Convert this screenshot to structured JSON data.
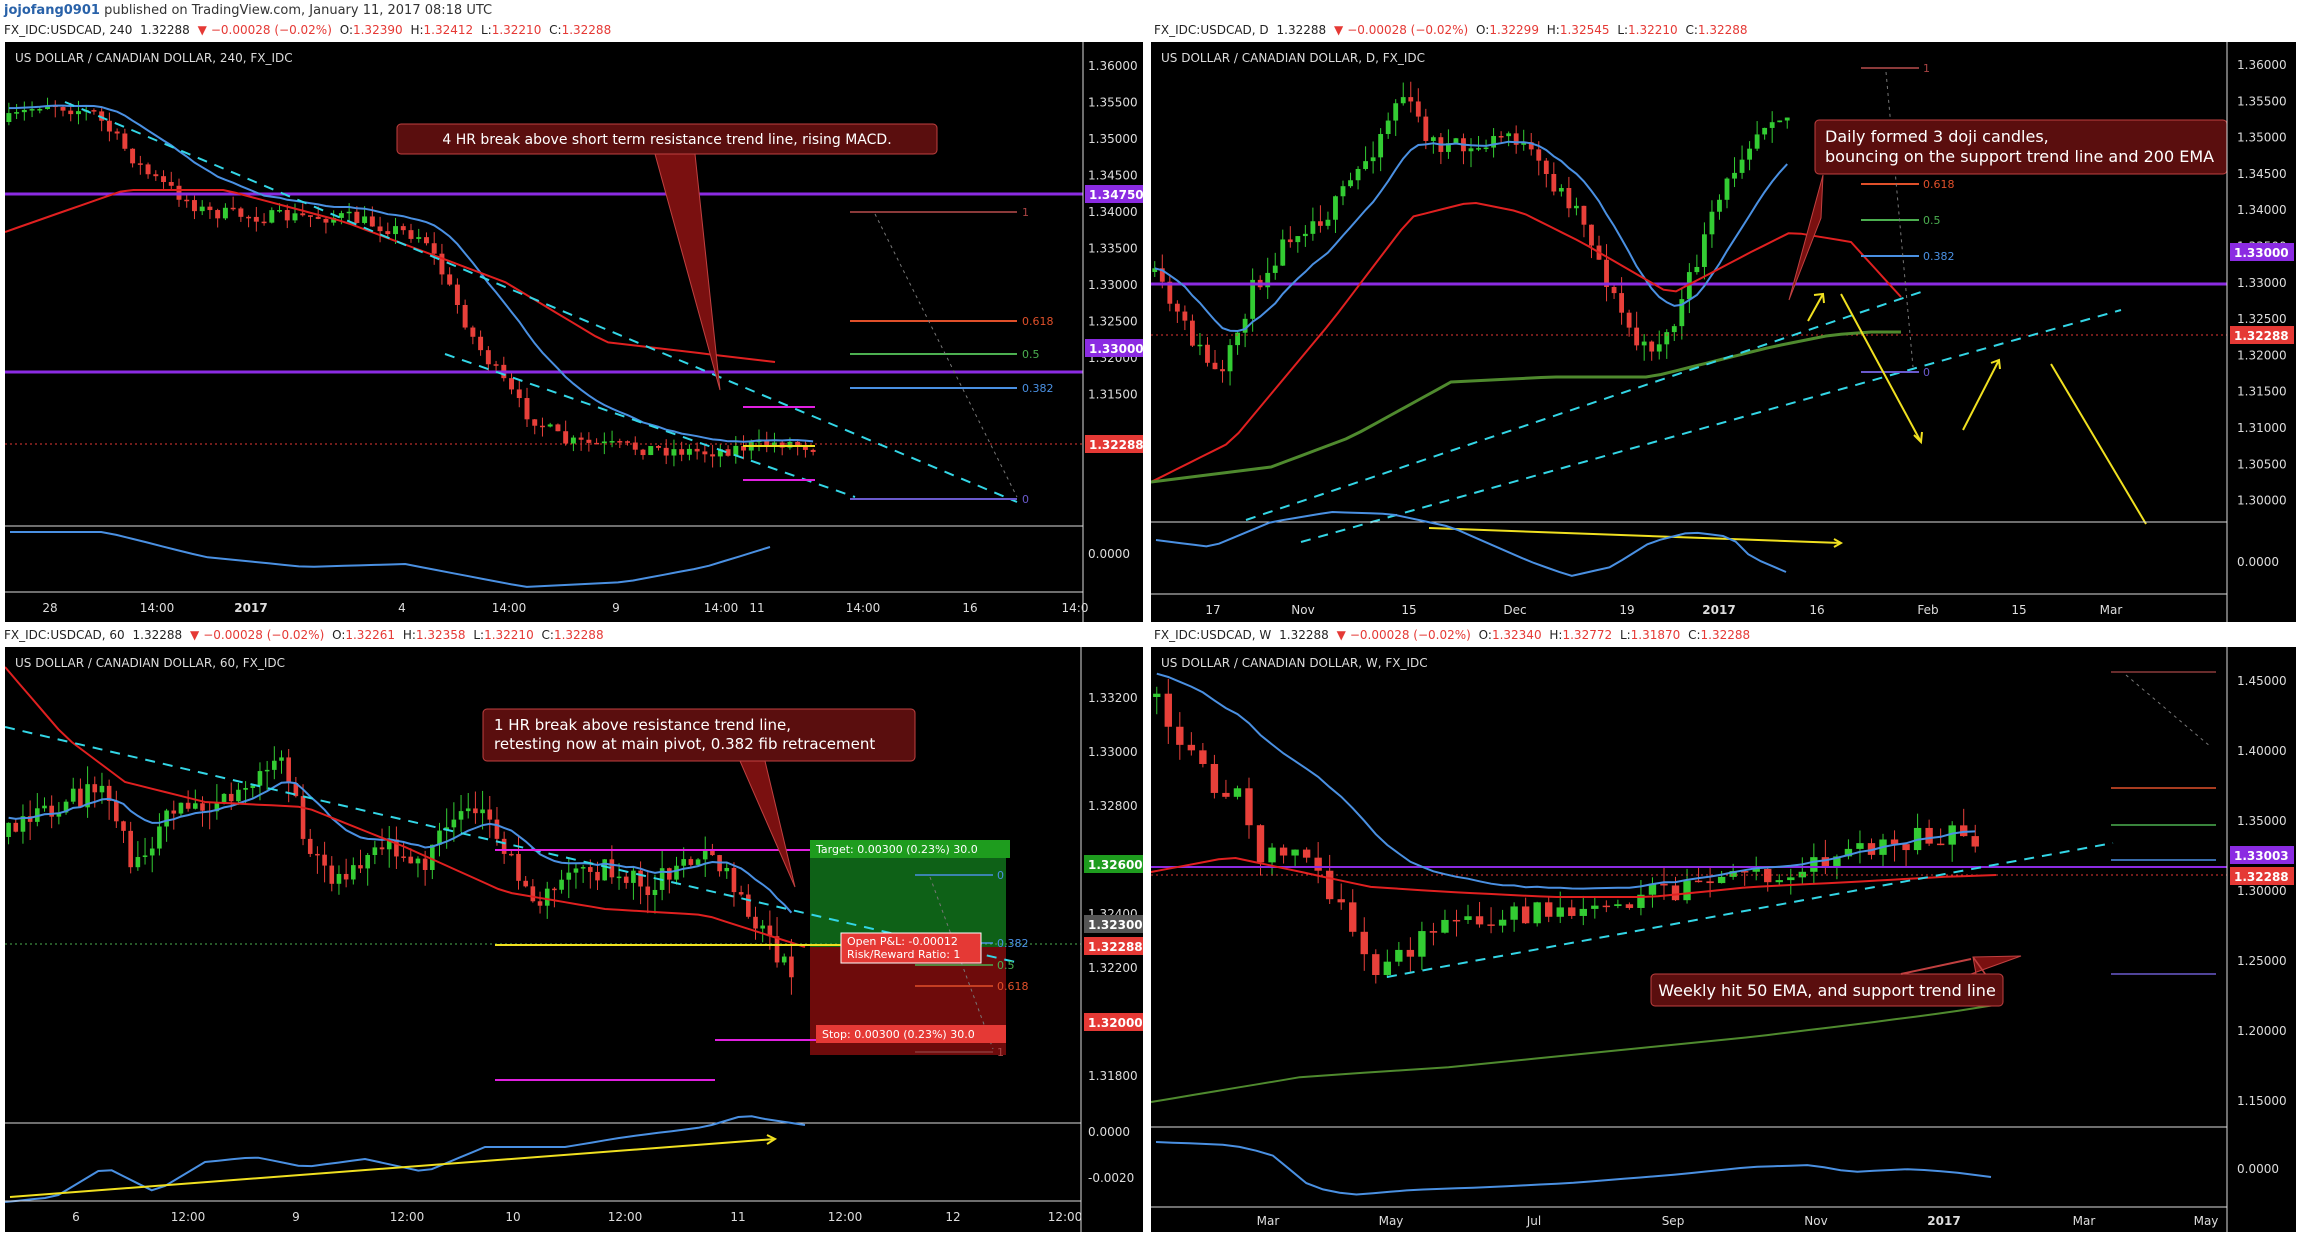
{
  "header": {
    "user": "jojofang0901",
    "text": "published on TradingView.com, January 11, 2017 08:18 UTC"
  },
  "colors": {
    "bg": "#000000",
    "up": "#33cc33",
    "down": "#e8403a",
    "ema_blue": "#4a90e2",
    "ema_red": "#e02020",
    "ema_green": "#4f8a2e",
    "pivot": "#8b2be2",
    "cyan": "#33d6e6",
    "yellow": "#f0e020",
    "magenta": "#e020e0"
  },
  "panels": [
    {
      "id": "p240",
      "info": {
        "sym": "FX_IDC:USDCAD, 240",
        "last": "1.32288",
        "chg": "−0.00028 (−0.02%)",
        "o": "1.32390",
        "h": "1.32412",
        "l": "1.32210",
        "c": "1.32288"
      },
      "title": "US DOLLAR / CANADIAN DOLLAR, 240, FX_IDC",
      "price_ticks": [
        "1.36000",
        "1.35500",
        "1.35000",
        "1.34500",
        "1.34000",
        "1.33500",
        "1.33000",
        "1.32500",
        "1.32000",
        "1.31500"
      ],
      "badges": [
        {
          "label": "1.34750",
          "color": "#8b2be2"
        },
        {
          "label": "1.33000",
          "color": "#8b2be2"
        },
        {
          "label": "1.32288",
          "color": "#e53935"
        }
      ],
      "macd_tick": "0.0000",
      "time_ticks": [
        "28",
        "14:00",
        "2017",
        "4",
        "14:00",
        "9",
        "14:00",
        "11",
        "14:00",
        "16",
        "14:0"
      ],
      "fib": [
        "1",
        "0.618",
        "0.5",
        "0.382",
        "0"
      ],
      "annotation": "4 HR break above short term resistance trend line, rising MACD."
    },
    {
      "id": "pD",
      "info": {
        "sym": "FX_IDC:USDCAD, D",
        "last": "1.32288",
        "chg": "−0.00028 (−0.02%)",
        "o": "1.32299",
        "h": "1.32545",
        "l": "1.32210",
        "c": "1.32288"
      },
      "title": "US DOLLAR / CANADIAN DOLLAR, D, FX_IDC",
      "price_ticks": [
        "1.36000",
        "1.35500",
        "1.35000",
        "1.34500",
        "1.34000",
        "1.33500",
        "1.33000",
        "1.32500",
        "1.32000",
        "1.31500",
        "1.31000",
        "1.30500",
        "1.30000"
      ],
      "badges": [
        {
          "label": "1.33000",
          "color": "#8b2be2"
        },
        {
          "label": "1.32288",
          "color": "#e53935"
        }
      ],
      "macd_tick": "0.0000",
      "time_ticks": [
        "17",
        "Nov",
        "15",
        "Dec",
        "19",
        "2017",
        "16",
        "Feb",
        "15",
        "Mar"
      ],
      "fib": [
        "1",
        "0.618",
        "0.5",
        "0.382",
        "0"
      ],
      "annotation": [
        "Daily formed 3 doji candles,",
        "bouncing on the support trend line and 200 EMA"
      ]
    },
    {
      "id": "p60",
      "info": {
        "sym": "FX_IDC:USDCAD, 60",
        "last": "1.32288",
        "chg": "−0.00028 (−0.02%)",
        "o": "1.32261",
        "h": "1.32358",
        "l": "1.32210",
        "c": "1.32288"
      },
      "title": "US DOLLAR / CANADIAN DOLLAR, 60, FX_IDC",
      "price_ticks": [
        "1.33200",
        "1.33000",
        "1.32800",
        "1.32600",
        "1.32400",
        "1.32200",
        "1.32000",
        "1.31800"
      ],
      "badges": [
        {
          "label": "1.32600",
          "color": "#1e9c1e"
        },
        {
          "label": "1.32300",
          "color": "#555555"
        },
        {
          "label": "1.32288",
          "color": "#e53935"
        },
        {
          "label": "1.32000",
          "color": "#e53935"
        }
      ],
      "macd_ticks": [
        "0.0000",
        "-0.0020"
      ],
      "time_ticks": [
        "6",
        "12:00",
        "9",
        "12:00",
        "10",
        "12:00",
        "11",
        "12:00",
        "12",
        "12:00"
      ],
      "fib": [
        "0",
        "0.382",
        "0.5",
        "0.618",
        "1"
      ],
      "target": "Target: 0.00300 (0.23%) 30.0",
      "stop": "Stop: 0.00300 (0.23%) 30.0",
      "pl": "Open P&L: -0.00012",
      "rr": "Risk/Reward Ratio: 1",
      "annotation": [
        "1 HR break above resistance trend line,",
        "retesting now at main pivot, 0.382 fib retracement"
      ]
    },
    {
      "id": "pW",
      "info": {
        "sym": "FX_IDC:USDCAD, W",
        "last": "1.32288",
        "chg": "−0.00028 (−0.02%)",
        "o": "1.32340",
        "h": "1.32772",
        "l": "1.31870",
        "c": "1.32288"
      },
      "title": "US DOLLAR / CANADIAN DOLLAR, W, FX_IDC",
      "price_ticks": [
        "1.45000",
        "1.40000",
        "1.35000",
        "1.30000",
        "1.25000",
        "1.20000",
        "1.15000"
      ],
      "badges": [
        {
          "label": "1.33003",
          "color": "#8b2be2"
        },
        {
          "label": "1.32288",
          "color": "#e53935"
        }
      ],
      "macd_tick": "0.0000",
      "time_ticks": [
        "Mar",
        "May",
        "Jul",
        "Sep",
        "Nov",
        "2017",
        "Mar",
        "May"
      ],
      "annotation": "Weekly hit 50 EMA, and support trend line"
    }
  ],
  "chart_data": [
    {
      "type": "candlestick",
      "timeframe": "240",
      "ylim": [
        1.315,
        1.362
      ],
      "last": 1.32288,
      "series": [
        {
          "name": "EMA",
          "color": "blue"
        },
        {
          "name": "EMA",
          "color": "red"
        },
        {
          "name": "MACD",
          "color": "blue"
        }
      ],
      "levels": [
        1.3475,
        1.33,
        1.32288
      ]
    },
    {
      "type": "candlestick",
      "timeframe": "D",
      "ylim": [
        1.296,
        1.364
      ],
      "last": 1.32288,
      "series": [
        {
          "name": "EMA",
          "color": "blue"
        },
        {
          "name": "EMA",
          "color": "red"
        },
        {
          "name": "200 EMA",
          "color": "green"
        },
        {
          "name": "MACD",
          "color": "blue"
        }
      ],
      "levels": [
        1.33,
        1.32288
      ]
    },
    {
      "type": "candlestick",
      "timeframe": "60",
      "ylim": [
        1.3166,
        1.3332
      ],
      "last": 1.32288,
      "series": [
        {
          "name": "EMA",
          "color": "blue"
        },
        {
          "name": "EMA",
          "color": "red"
        },
        {
          "name": "MACD",
          "color": "blue"
        }
      ],
      "levels": [
        1.326,
        1.323,
        1.32288,
        1.32
      ]
    },
    {
      "type": "candlestick",
      "timeframe": "W",
      "ylim": [
        1.145,
        1.475
      ],
      "last": 1.32288,
      "series": [
        {
          "name": "EMA",
          "color": "blue"
        },
        {
          "name": "50 EMA",
          "color": "red"
        },
        {
          "name": "EMA",
          "color": "green"
        },
        {
          "name": "MACD",
          "color": "blue"
        }
      ],
      "levels": [
        1.33003,
        1.32288
      ]
    }
  ]
}
